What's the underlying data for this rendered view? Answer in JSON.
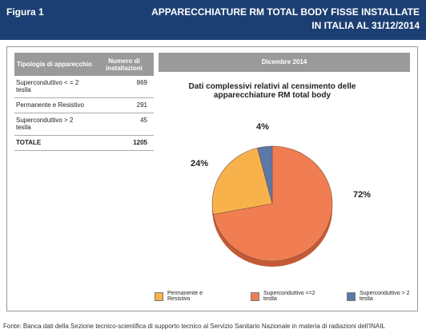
{
  "header": {
    "figure": "Figura 1",
    "title_lines": [
      "APPARECCHIATURE RM TOTAL BODY FISSE INSTALLATE",
      "IN ITALIA AL 31/12/2014"
    ]
  },
  "table": {
    "columns": [
      "Tipologia di apparecchio",
      "Numero di installazioni"
    ],
    "rows": [
      [
        "Superconduttivo < = 2 teslla",
        "869"
      ],
      [
        "Permanente e Resistivo",
        "291"
      ],
      [
        "Superconduttivo > 2 teslla",
        "45"
      ],
      [
        "TOTALE",
        "1205"
      ]
    ]
  },
  "panel_title": "Dicembre 2014",
  "chart_data": {
    "type": "pie",
    "title": "Dati complessivi relativi al censimento delle apparecchiature RM total body",
    "categories": [
      "Superconduttivo <=2 testla",
      "Permanente e Resistivo",
      "Superconduttivo > 2 testla"
    ],
    "values": [
      72,
      24,
      4
    ],
    "value_labels": [
      "72%",
      "24%",
      "4%"
    ],
    "colors": [
      "#f07e52",
      "#f8b24c",
      "#5b79a6"
    ],
    "legend_order": [
      1,
      0,
      2
    ]
  },
  "source": "Fonte: Banca dati della Sezione tecnico-scientifica di supporto tecnico al Servizio Sanitario Nazionale in materia di radiazioni dell'INAIL"
}
